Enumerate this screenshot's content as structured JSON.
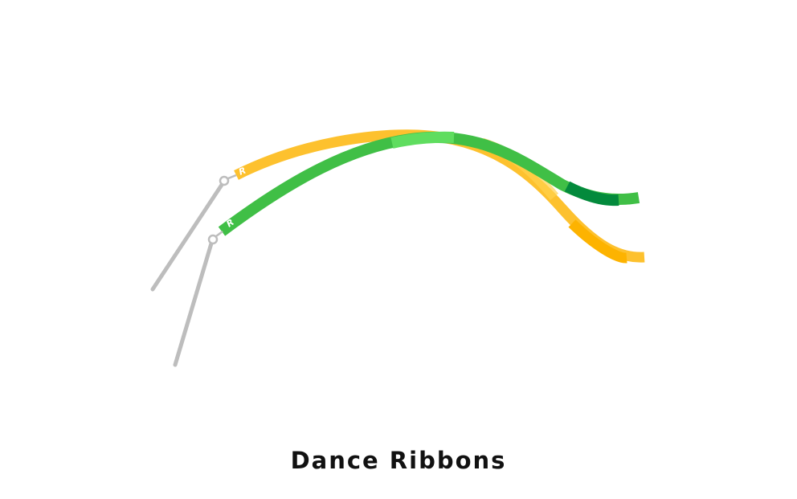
{
  "caption": "Dance Ribbons",
  "illustration": {
    "ribbons": [
      {
        "name": "yellow-ribbon",
        "color": "#FDC12E",
        "shade": "#FDB300",
        "logo": "R"
      },
      {
        "name": "green-ribbon",
        "color": "#40BF46",
        "shade": "#038A3C",
        "highlight": "#5FDD5F",
        "logo": "R"
      }
    ],
    "stick_color": "#BDBDBD"
  }
}
